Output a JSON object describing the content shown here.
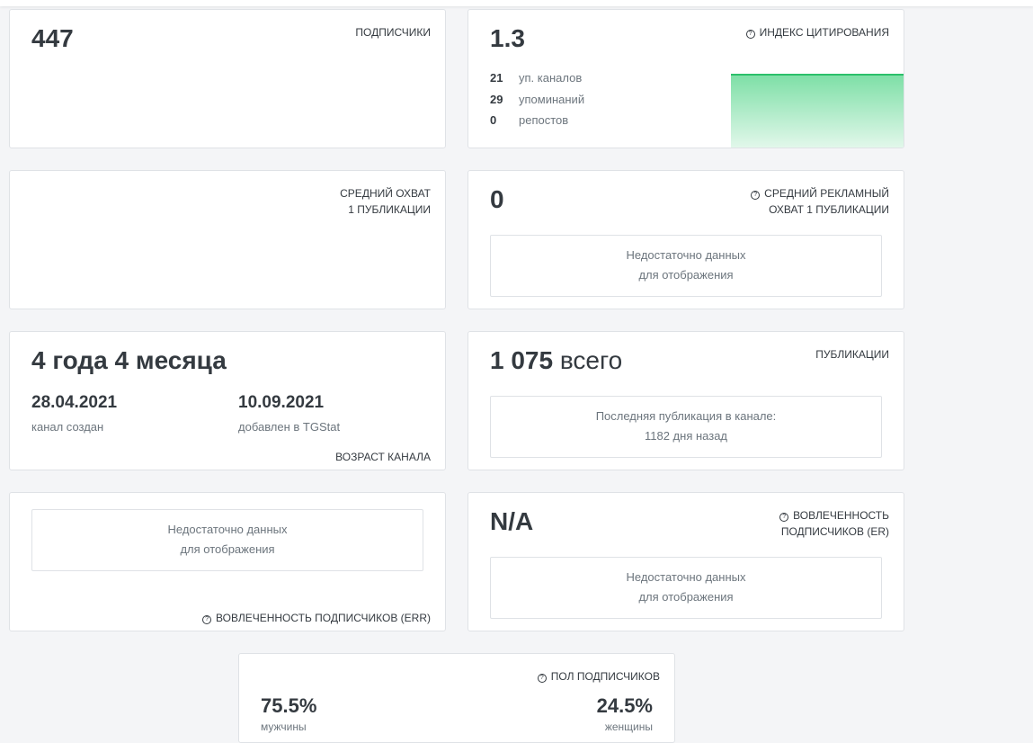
{
  "subscribers": {
    "value": "447",
    "label": "ПОДПИСЧИКИ"
  },
  "citation": {
    "value": "1.3",
    "label": "ИНДЕКС ЦИТИРОВАНИЯ",
    "stats": [
      {
        "num": "21",
        "text": "уп. каналов"
      },
      {
        "num": "29",
        "text": "упоминаний"
      },
      {
        "num": "0",
        "text": "репостов"
      }
    ],
    "chart_color": "#2bc06a"
  },
  "reach": {
    "label_line1": "СРЕДНИЙ ОХВАТ",
    "label_line2": "1 ПУБЛИКАЦИИ"
  },
  "ad_reach": {
    "value": "0",
    "label_line1": "СРЕДНИЙ РЕКЛАМНЫЙ",
    "label_line2": "ОХВАТ 1 ПУБЛИКАЦИИ",
    "nodata_line1": "Недостаточно данных",
    "nodata_line2": "для отображения"
  },
  "age": {
    "value": "4 года 4 месяца",
    "created_date": "28.04.2021",
    "created_caption": "канал создан",
    "added_date": "10.09.2021",
    "added_caption": "добавлен в TGStat",
    "label": "ВОЗРАСТ КАНАЛА"
  },
  "publications": {
    "value_num": "1 075",
    "value_suffix": "всего",
    "label": "ПУБЛИКАЦИИ",
    "last_line1": "Последняя публикация в канале:",
    "last_line2": "1182 дня назад"
  },
  "err": {
    "nodata_line1": "Недостаточно данных",
    "nodata_line2": "для отображения",
    "label": "ВОВЛЕЧЕННОСТЬ ПОДПИСЧИКОВ (ERR)"
  },
  "er": {
    "value": "N/A",
    "label_line1": "ВОВЛЕЧЕННОСТЬ",
    "label_line2": "ПОДПИСЧИКОВ (ER)",
    "nodata_line1": "Недостаточно данных",
    "nodata_line2": "для отображения"
  },
  "gender": {
    "label": "ПОЛ ПОДПИСЧИКОВ",
    "male_pct": "75.5%",
    "male_caption": "мужчины",
    "female_pct": "24.5%",
    "female_caption": "женщины"
  }
}
